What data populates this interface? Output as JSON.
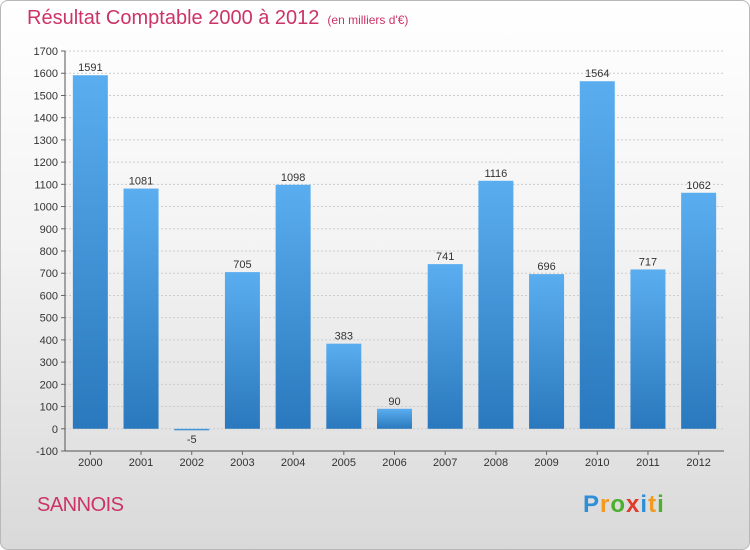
{
  "title": "Résultat Comptable 2000 à 2012",
  "subtitle": "(en milliers d'€)",
  "location": "SANNOIS",
  "logo": {
    "text": "Proxiti",
    "letters": [
      {
        "ch": "P",
        "color": "#2e8fd6"
      },
      {
        "ch": "r",
        "color": "#f29a1e"
      },
      {
        "ch": "o",
        "color": "#4caf2e"
      },
      {
        "ch": "x",
        "color": "#e23a2a"
      },
      {
        "ch": "i",
        "color": "#2e8fd6"
      },
      {
        "ch": "t",
        "color": "#f29a1e"
      },
      {
        "ch": "i",
        "color": "#4caf2e"
      }
    ]
  },
  "colors": {
    "bar_top": "#5aaef0",
    "bar_bottom": "#2a78bd",
    "title": "#cc3366",
    "grid": "#cccccc"
  },
  "chart_data": {
    "type": "bar",
    "title": "Résultat Comptable 2000 à 2012",
    "subtitle": "(en milliers d'€)",
    "xlabel": "",
    "ylabel": "",
    "categories": [
      "2000",
      "2001",
      "2002",
      "2003",
      "2004",
      "2005",
      "2006",
      "2007",
      "2008",
      "2009",
      "2010",
      "2011",
      "2012"
    ],
    "values": [
      1591,
      1081,
      -5,
      705,
      1098,
      383,
      90,
      741,
      1116,
      696,
      1564,
      717,
      1062
    ],
    "ylim": [
      -100,
      1700
    ],
    "yticks": [
      -100,
      0,
      100,
      200,
      300,
      400,
      500,
      600,
      700,
      800,
      900,
      1000,
      1100,
      1200,
      1300,
      1400,
      1500,
      1600,
      1700
    ],
    "grid": true,
    "legend": "none"
  }
}
